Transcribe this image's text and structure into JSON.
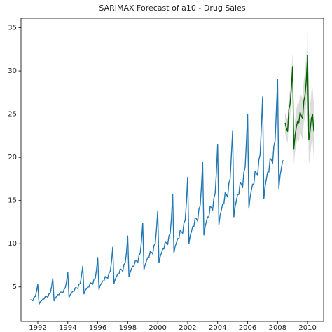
{
  "chart_data": {
    "type": "line",
    "title": "SARIMAX Forecast of a10 - Drug Sales",
    "xlim": [
      1990.88,
      2011.07
    ],
    "ylim": [
      1.0,
      36.1
    ],
    "xticks": [
      1992,
      1994,
      1996,
      1998,
      2000,
      2002,
      2004,
      2006,
      2008,
      2010
    ],
    "yticks": [
      5,
      10,
      15,
      20,
      25,
      30,
      35
    ],
    "series": [
      {
        "color": "#1f77b4",
        "x": [
          1991.5,
          1991.583,
          1991.667,
          1991.75,
          1991.833,
          1991.917,
          1992.0,
          1992.083,
          1992.167,
          1992.25,
          1992.333,
          1992.417,
          1992.5,
          1992.583,
          1992.667,
          1992.75,
          1992.833,
          1992.917,
          1993.0,
          1993.083,
          1993.167,
          1993.25,
          1993.333,
          1993.417,
          1993.5,
          1993.583,
          1993.667,
          1993.75,
          1993.833,
          1993.917,
          1994.0,
          1994.083,
          1994.167,
          1994.25,
          1994.333,
          1994.417,
          1994.5,
          1994.583,
          1994.667,
          1994.75,
          1994.833,
          1994.917,
          1995.0,
          1995.083,
          1995.167,
          1995.25,
          1995.333,
          1995.417,
          1995.5,
          1995.583,
          1995.667,
          1995.75,
          1995.833,
          1995.917,
          1996.0,
          1996.083,
          1996.167,
          1996.25,
          1996.333,
          1996.417,
          1996.5,
          1996.583,
          1996.667,
          1996.75,
          1996.833,
          1996.917,
          1997.0,
          1997.083,
          1997.167,
          1997.25,
          1997.333,
          1997.417,
          1997.5,
          1997.583,
          1997.667,
          1997.75,
          1997.833,
          1997.917,
          1998.0,
          1998.083,
          1998.167,
          1998.25,
          1998.333,
          1998.417,
          1998.5,
          1998.583,
          1998.667,
          1998.75,
          1998.833,
          1998.917,
          1999.0,
          1999.083,
          1999.167,
          1999.25,
          1999.333,
          1999.417,
          1999.5,
          1999.583,
          1999.667,
          1999.75,
          1999.833,
          1999.917,
          2000.0,
          2000.083,
          2000.167,
          2000.25,
          2000.333,
          2000.417,
          2000.5,
          2000.583,
          2000.667,
          2000.75,
          2000.833,
          2000.917,
          2001.0,
          2001.083,
          2001.167,
          2001.25,
          2001.333,
          2001.417,
          2001.5,
          2001.583,
          2001.667,
          2001.75,
          2001.833,
          2001.917,
          2002.0,
          2002.083,
          2002.167,
          2002.25,
          2002.333,
          2002.417,
          2002.5,
          2002.583,
          2002.667,
          2002.75,
          2002.833,
          2002.917,
          2003.0,
          2003.083,
          2003.167,
          2003.25,
          2003.333,
          2003.417,
          2003.5,
          2003.583,
          2003.667,
          2003.75,
          2003.833,
          2003.917,
          2004.0,
          2004.083,
          2004.167,
          2004.25,
          2004.333,
          2004.417,
          2004.5,
          2004.583,
          2004.667,
          2004.75,
          2004.833,
          2004.917,
          2005.0,
          2005.083,
          2005.167,
          2005.25,
          2005.333,
          2005.417,
          2005.5,
          2005.583,
          2005.667,
          2005.75,
          2005.833,
          2005.917,
          2006.0,
          2006.083,
          2006.167,
          2006.25,
          2006.333,
          2006.417,
          2006.5,
          2006.583,
          2006.667,
          2006.75,
          2006.833,
          2006.917,
          2007.0,
          2007.083,
          2007.167,
          2007.25,
          2007.333,
          2007.417,
          2007.5,
          2007.583,
          2007.667,
          2007.75,
          2007.833,
          2007.917,
          2008.0,
          2008.083,
          2008.167,
          2008.25,
          2008.333,
          2008.417
        ],
        "values": [
          3.5,
          3.5,
          3.4,
          3.8,
          3.9,
          4.5,
          5.3,
          3.0,
          3.3,
          3.4,
          3.6,
          3.6,
          3.9,
          3.9,
          3.8,
          4.2,
          4.3,
          5.0,
          6.0,
          3.4,
          3.7,
          3.9,
          4.1,
          4.1,
          4.4,
          4.4,
          4.3,
          4.7,
          4.9,
          5.6,
          6.7,
          3.8,
          4.1,
          4.3,
          4.5,
          4.5,
          4.9,
          4.9,
          4.8,
          5.3,
          5.4,
          6.3,
          7.4,
          4.2,
          4.6,
          4.8,
          5.0,
          5.0,
          5.5,
          5.4,
          5.3,
          5.9,
          6.0,
          7.0,
          8.4,
          4.7,
          5.2,
          5.4,
          5.7,
          5.7,
          6.2,
          6.1,
          6.0,
          6.6,
          6.8,
          7.9,
          9.6,
          5.4,
          5.9,
          6.2,
          6.5,
          6.5,
          7.1,
          7.0,
          6.8,
          7.6,
          7.8,
          9.0,
          10.9,
          6.2,
          6.7,
          7.1,
          7.4,
          7.4,
          8.0,
          8.0,
          7.8,
          8.6,
          8.9,
          10.3,
          12.4,
          7.0,
          7.6,
          8.0,
          8.4,
          8.4,
          9.1,
          9.0,
          8.8,
          9.8,
          10.0,
          11.6,
          13.8,
          7.8,
          8.5,
          8.9,
          9.4,
          9.4,
          10.2,
          10.1,
          9.9,
          10.9,
          11.2,
          13.0,
          15.7,
          8.9,
          9.7,
          10.1,
          10.6,
          10.6,
          11.6,
          11.4,
          11.2,
          12.4,
          12.7,
          14.8,
          17.7,
          10.0,
          10.9,
          11.4,
          12.0,
          12.0,
          13.0,
          12.9,
          12.6,
          14.0,
          14.4,
          16.6,
          19.4,
          11.0,
          12.0,
          12.6,
          13.1,
          13.1,
          14.3,
          14.2,
          13.9,
          15.3,
          15.8,
          18.3,
          21.5,
          12.2,
          13.3,
          13.9,
          14.6,
          14.6,
          15.9,
          15.7,
          15.4,
          17.0,
          17.5,
          20.3,
          23.1,
          13.1,
          14.3,
          15.0,
          15.7,
          15.7,
          17.1,
          16.9,
          16.5,
          18.3,
          18.8,
          21.8,
          25.0,
          14.1,
          15.4,
          16.2,
          16.9,
          16.9,
          18.4,
          18.2,
          17.9,
          19.7,
          20.3,
          23.5,
          27.0,
          15.2,
          16.6,
          17.5,
          18.3,
          18.3,
          19.9,
          19.7,
          19.3,
          21.3,
          21.9,
          25.4,
          29.0,
          16.4,
          17.9,
          18.7,
          19.6,
          19.6
        ]
      },
      {
        "color": "#006400",
        "band_color": "#d3d3d3",
        "x": [
          2008.5,
          2008.583,
          2008.667,
          2008.75,
          2008.833,
          2008.917,
          2009.0,
          2009.083,
          2009.167,
          2009.25,
          2009.333,
          2009.417,
          2009.5,
          2009.583,
          2009.667,
          2009.75,
          2009.833,
          2009.917,
          2010.0,
          2010.083,
          2010.167,
          2010.25,
          2010.333,
          2010.417
        ],
        "values": [
          24.0,
          23.4,
          23.0,
          25.5,
          26.2,
          28.0,
          30.5,
          21.0,
          22.5,
          23.5,
          24.2,
          24.0,
          25.2,
          24.8,
          24.5,
          26.5,
          27.2,
          29.0,
          31.8,
          22.0,
          23.0,
          24.5,
          25.0,
          23.0
        ],
        "lower": [
          22.8,
          22.1,
          21.6,
          24.0,
          24.6,
          26.4,
          28.8,
          19.2,
          20.6,
          21.5,
          22.1,
          21.8,
          23.0,
          22.5,
          22.1,
          24.0,
          24.6,
          26.3,
          29.0,
          19.1,
          20.1,
          21.5,
          21.9,
          19.8
        ],
        "upper": [
          25.2,
          24.7,
          24.4,
          27.0,
          27.8,
          29.6,
          32.2,
          22.8,
          24.4,
          25.5,
          26.3,
          26.2,
          27.4,
          27.1,
          26.9,
          29.0,
          29.8,
          31.7,
          34.6,
          24.9,
          25.9,
          27.5,
          28.1,
          26.2
        ]
      }
    ]
  }
}
